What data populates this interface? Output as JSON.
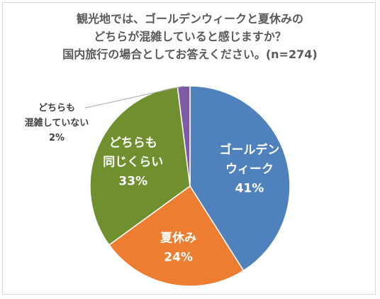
{
  "title_lines": [
    "観光地では、ゴールデンウィークと夏休みの",
    "どちらが混雑していると感じますか？",
    "国内旅行の場合としてお答えください。(n=274)"
  ],
  "colors": {
    "golden_week": "#4f81bd",
    "summer": "#ed7d31",
    "same": "#70902f",
    "neither": "#7d5ba6"
  },
  "chart_data": {
    "type": "pie",
    "title": "観光地では、ゴールデンウィークと夏休みのどちらが混雑していると感じますか？国内旅行の場合としてお答えください。(n=274)",
    "slices": [
      {
        "key": "golden_week",
        "label_lines": [
          "ゴールデン",
          "ウィーク"
        ],
        "value": 41,
        "value_label": "41%"
      },
      {
        "key": "summer",
        "label_lines": [
          "夏休み"
        ],
        "value": 24,
        "value_label": "24%"
      },
      {
        "key": "same",
        "label_lines": [
          "どちらも",
          "同じくらい"
        ],
        "value": 33,
        "value_label": "33%"
      },
      {
        "key": "neither",
        "label_lines": [
          "どちらも",
          "混雑していない"
        ],
        "value": 2,
        "value_label": "2%"
      }
    ]
  }
}
